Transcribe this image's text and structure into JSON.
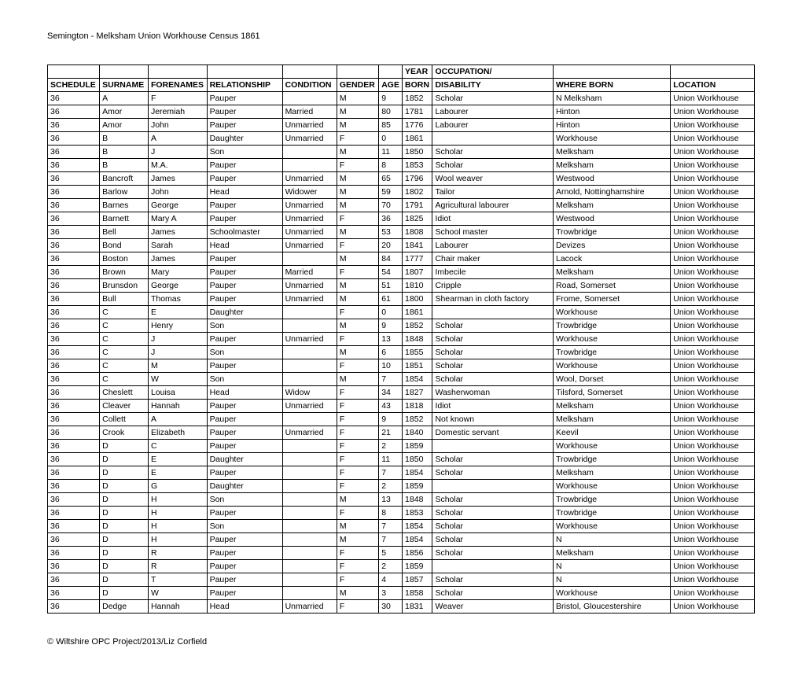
{
  "title": "Semington - Melksham Union Workhouse Census 1861",
  "footer": "© Wiltshire OPC Project/2013/Liz Corfield",
  "table": {
    "header_row1": [
      "",
      "",
      "",
      "",
      "",
      "",
      "",
      "YEAR",
      "OCCUPATION/",
      "",
      ""
    ],
    "header_row2": [
      "SCHEDULE",
      "SURNAME",
      "FORENAMES",
      "RELATIONSHIP",
      "CONDITION",
      "GENDER",
      "AGE",
      "BORN",
      "DISABILITY",
      "WHERE BORN",
      "LOCATION"
    ],
    "rows": [
      [
        "36",
        "A",
        "F",
        "Pauper",
        "",
        "M",
        "9",
        "1852",
        "Scholar",
        "N Melksham",
        "Union Workhouse"
      ],
      [
        "36",
        "Amor",
        "Jeremiah",
        "Pauper",
        "Married",
        "M",
        "80",
        "1781",
        "Labourer",
        "Hinton",
        "Union Workhouse"
      ],
      [
        "36",
        "Amor",
        "John",
        "Pauper",
        "Unmarried",
        "M",
        "85",
        "1776",
        "Labourer",
        "Hinton",
        "Union Workhouse"
      ],
      [
        "36",
        "B",
        "A",
        "Daughter",
        "Unmarried",
        "F",
        "0",
        "1861",
        "",
        "Workhouse",
        "Union Workhouse"
      ],
      [
        "36",
        "B",
        "J",
        "Son",
        "",
        "M",
        "11",
        "1850",
        "Scholar",
        "Melksham",
        "Union Workhouse"
      ],
      [
        "36",
        "B",
        "M.A.",
        "Pauper",
        "",
        "F",
        "8",
        "1853",
        "Scholar",
        "Melksham",
        "Union Workhouse"
      ],
      [
        "36",
        "Bancroft",
        "James",
        "Pauper",
        "Unmarried",
        "M",
        "65",
        "1796",
        "Wool weaver",
        "Westwood",
        "Union Workhouse"
      ],
      [
        "36",
        "Barlow",
        "John",
        "Head",
        "Widower",
        "M",
        "59",
        "1802",
        "Tailor",
        "Arnold, Nottinghamshire",
        "Union Workhouse"
      ],
      [
        "36",
        "Barnes",
        "George",
        "Pauper",
        "Unmarried",
        "M",
        "70",
        "1791",
        "Agricultural labourer",
        "Melksham",
        "Union Workhouse"
      ],
      [
        "36",
        "Barnett",
        "Mary A",
        "Pauper",
        "Unmarried",
        "F",
        "36",
        "1825",
        "Idiot",
        "Westwood",
        "Union Workhouse"
      ],
      [
        "36",
        "Bell",
        "James",
        "Schoolmaster",
        "Unmarried",
        "M",
        "53",
        "1808",
        "School master",
        "Trowbridge",
        "Union Workhouse"
      ],
      [
        "36",
        "Bond",
        "Sarah",
        "Head",
        "Unmarried",
        "F",
        "20",
        "1841",
        "Labourer",
        "Devizes",
        "Union Workhouse"
      ],
      [
        "36",
        "Boston",
        "James",
        "Pauper",
        "",
        "M",
        "84",
        "1777",
        "Chair maker",
        "Lacock",
        "Union Workhouse"
      ],
      [
        "36",
        "Brown",
        "Mary",
        "Pauper",
        "Married",
        "F",
        "54",
        "1807",
        "Imbecile",
        "Melksham",
        "Union Workhouse"
      ],
      [
        "36",
        "Brunsdon",
        "George",
        "Pauper",
        "Unmarried",
        "M",
        "51",
        "1810",
        "Cripple",
        "Road, Somerset",
        "Union Workhouse"
      ],
      [
        "36",
        "Bull",
        "Thomas",
        "Pauper",
        "Unmarried",
        "M",
        "61",
        "1800",
        "Shearman in cloth factory",
        "Frome, Somerset",
        "Union Workhouse"
      ],
      [
        "36",
        "C",
        "E",
        "Daughter",
        "",
        "F",
        "0",
        "1861",
        "",
        "Workhouse",
        "Union Workhouse"
      ],
      [
        "36",
        "C",
        "Henry",
        "Son",
        "",
        "M",
        "9",
        "1852",
        "Scholar",
        "Trowbridge",
        "Union Workhouse"
      ],
      [
        "36",
        "C",
        "J",
        "Pauper",
        "Unmarried",
        "F",
        "13",
        "1848",
        "Scholar",
        "Workhouse",
        "Union Workhouse"
      ],
      [
        "36",
        "C",
        "J",
        "Son",
        "",
        "M",
        "6",
        "1855",
        "Scholar",
        "Trowbridge",
        "Union Workhouse"
      ],
      [
        "36",
        "C",
        "M",
        "Pauper",
        "",
        "F",
        "10",
        "1851",
        "Scholar",
        "Workhouse",
        "Union Workhouse"
      ],
      [
        "36",
        "C",
        "W",
        "Son",
        "",
        "M",
        "7",
        "1854",
        "Scholar",
        "Wool, Dorset",
        "Union Workhouse"
      ],
      [
        "36",
        "Cheslett",
        "Louisa",
        "Head",
        "Widow",
        "F",
        "34",
        "1827",
        "Washerwoman",
        "Tilsford, Somerset",
        "Union Workhouse"
      ],
      [
        "36",
        "Cleaver",
        "Hannah",
        "Pauper",
        "Unmarried",
        "F",
        "43",
        "1818",
        "Idiot",
        "Melksham",
        "Union Workhouse"
      ],
      [
        "36",
        "Collett",
        "A",
        "Pauper",
        "",
        "F",
        "9",
        "1852",
        "Not known",
        "Melksham",
        "Union Workhouse"
      ],
      [
        "36",
        "Crook",
        "Elizabeth",
        "Pauper",
        "Unmarried",
        "F",
        "21",
        "1840",
        "Domestic servant",
        "Keevil",
        "Union Workhouse"
      ],
      [
        "36",
        "D",
        "C",
        "Pauper",
        "",
        "F",
        "2",
        "1859",
        "",
        "Workhouse",
        "Union Workhouse"
      ],
      [
        "36",
        "D",
        "E",
        "Daughter",
        "",
        "F",
        "11",
        "1850",
        "Scholar",
        "Trowbridge",
        "Union Workhouse"
      ],
      [
        "36",
        "D",
        "E",
        "Pauper",
        "",
        "F",
        "7",
        "1854",
        "Scholar",
        "Melksham",
        "Union Workhouse"
      ],
      [
        "36",
        "D",
        "G",
        "Daughter",
        "",
        "F",
        "2",
        "1859",
        "",
        "Workhouse",
        "Union Workhouse"
      ],
      [
        "36",
        "D",
        "H",
        "Son",
        "",
        "M",
        "13",
        "1848",
        "Scholar",
        "Trowbridge",
        "Union Workhouse"
      ],
      [
        "36",
        "D",
        "H",
        "Pauper",
        "",
        "F",
        "8",
        "1853",
        "Scholar",
        "Trowbridge",
        "Union Workhouse"
      ],
      [
        "36",
        "D",
        "H",
        "Son",
        "",
        "M",
        "7",
        "1854",
        "Scholar",
        "Workhouse",
        "Union Workhouse"
      ],
      [
        "36",
        "D",
        "H",
        "Pauper",
        "",
        "M",
        "7",
        "1854",
        "Scholar",
        "N",
        "Union Workhouse"
      ],
      [
        "36",
        "D",
        "R",
        "Pauper",
        "",
        "F",
        "5",
        "1856",
        "Scholar",
        "Melksham",
        "Union Workhouse"
      ],
      [
        "36",
        "D",
        "R",
        "Pauper",
        "",
        "F",
        "2",
        "1859",
        "",
        "N",
        "Union Workhouse"
      ],
      [
        "36",
        "D",
        "T",
        "Pauper",
        "",
        "F",
        "4",
        "1857",
        "Scholar",
        "N",
        "Union Workhouse"
      ],
      [
        "36",
        "D",
        "W",
        "Pauper",
        "",
        "M",
        "3",
        "1858",
        "Scholar",
        "Workhouse",
        "Union Workhouse"
      ],
      [
        "36",
        "Dedge",
        "Hannah",
        "Head",
        "Unmarried",
        "F",
        "30",
        "1831",
        "Weaver",
        "Bristol, Gloucestershire",
        "Union Workhouse"
      ]
    ]
  },
  "style": {
    "font_family": "Arial, Helvetica, sans-serif",
    "title_fontsize": 11,
    "cell_fontsize": 10.5,
    "border_color": "#000000",
    "background_color": "#ffffff",
    "text_color": "#000000",
    "column_classes": [
      "c-schedule",
      "c-surname",
      "c-forenames",
      "c-relationship",
      "c-condition",
      "c-gender",
      "c-age",
      "c-year",
      "c-occupation",
      "c-where",
      "c-location"
    ]
  }
}
